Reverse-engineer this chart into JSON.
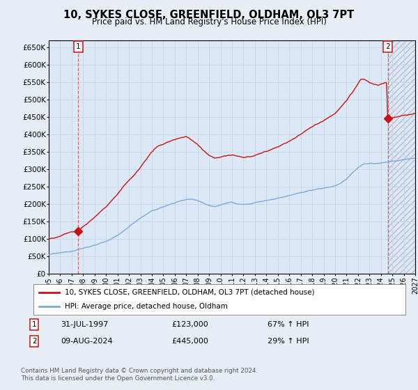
{
  "title": "10, SYKES CLOSE, GREENFIELD, OLDHAM, OL3 7PT",
  "subtitle": "Price paid vs. HM Land Registry's House Price Index (HPI)",
  "ylim": [
    0,
    670000
  ],
  "yticks": [
    0,
    50000,
    100000,
    150000,
    200000,
    250000,
    300000,
    350000,
    400000,
    450000,
    500000,
    550000,
    600000,
    650000
  ],
  "xlim_start": 1995.0,
  "xlim_end": 2027.0,
  "xticks": [
    1995,
    1996,
    1997,
    1998,
    1999,
    2000,
    2001,
    2002,
    2003,
    2004,
    2005,
    2006,
    2007,
    2008,
    2009,
    2010,
    2011,
    2012,
    2013,
    2014,
    2015,
    2016,
    2017,
    2018,
    2019,
    2020,
    2021,
    2022,
    2023,
    2024,
    2025,
    2026,
    2027
  ],
  "grid_color": "#c8d8e8",
  "background_color": "#e8eef5",
  "plot_bg_color": "#dce8f5",
  "sale1_date": 1997.58,
  "sale1_price": 123000,
  "sale1_label": "1",
  "sale2_date": 2024.61,
  "sale2_price": 445000,
  "sale2_label": "2",
  "hpi_line_color": "#7aaadd",
  "sale_line_color": "#cc1111",
  "legend_sale_label": "10, SYKES CLOSE, GREENFIELD, OLDHAM, OL3 7PT (detached house)",
  "legend_hpi_label": "HPI: Average price, detached house, Oldham",
  "annotation1_date": "31-JUL-1997",
  "annotation1_price": "£123,000",
  "annotation1_hpi": "67% ↑ HPI",
  "annotation2_date": "09-AUG-2024",
  "annotation2_price": "£445,000",
  "annotation2_hpi": "29% ↑ HPI",
  "footer": "Contains HM Land Registry data © Crown copyright and database right 2024.\nThis data is licensed under the Open Government Licence v3.0."
}
